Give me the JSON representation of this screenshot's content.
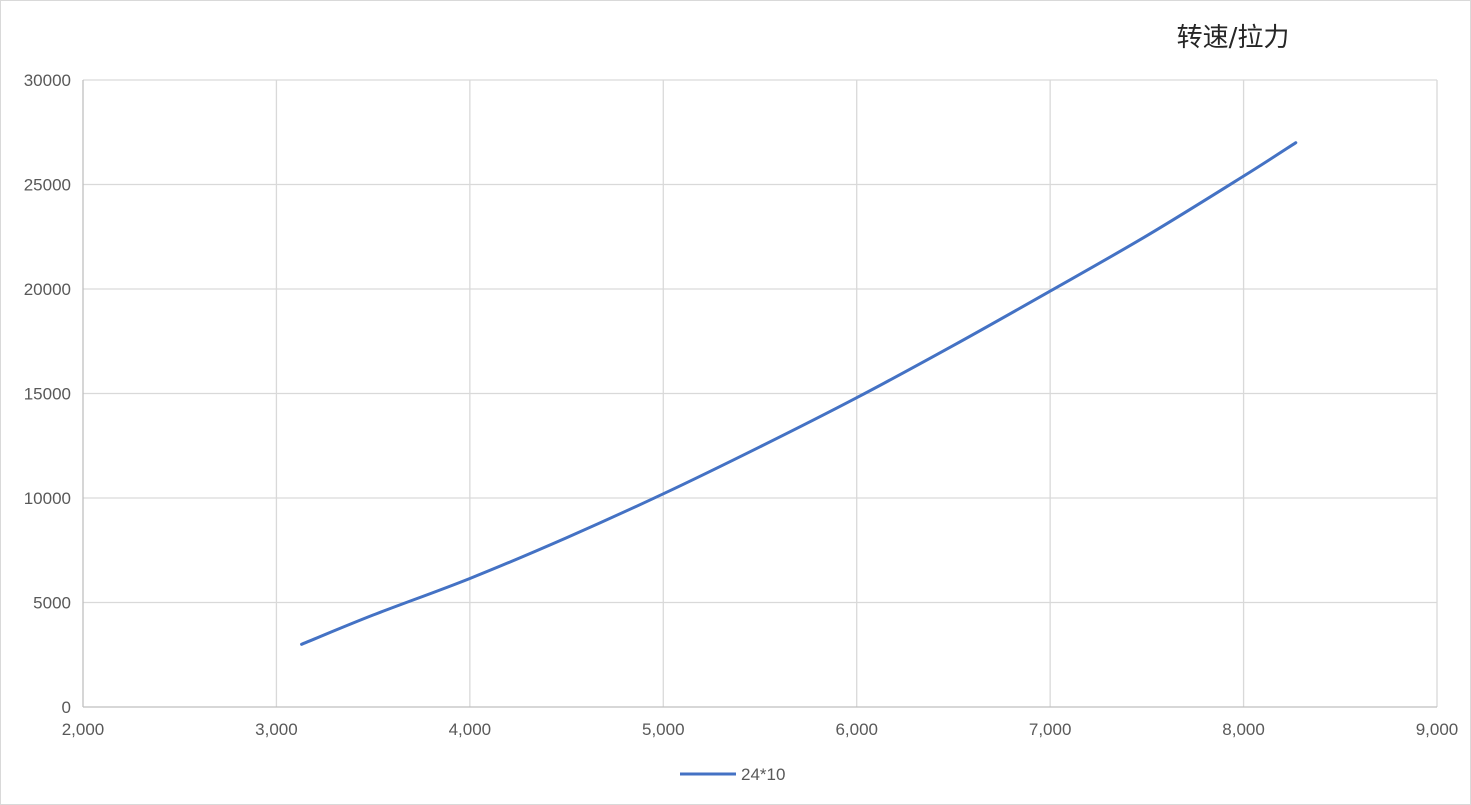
{
  "chart_data": {
    "type": "scatter",
    "title": "转速/拉力",
    "xlabel": "",
    "ylabel": "",
    "xlim": [
      2000,
      9000
    ],
    "ylim": [
      0,
      30000
    ],
    "x_ticks": [
      2000,
      3000,
      4000,
      5000,
      6000,
      7000,
      8000,
      9000
    ],
    "x_tick_labels": [
      "2,000",
      "3,000",
      "4,000",
      "5,000",
      "6,000",
      "7,000",
      "8,000",
      "9,000"
    ],
    "y_ticks": [
      0,
      5000,
      10000,
      15000,
      20000,
      25000,
      30000
    ],
    "y_tick_labels": [
      "0",
      "5000",
      "10000",
      "15000",
      "20000",
      "25000",
      "30000"
    ],
    "grid": true,
    "legend_position": "bottom",
    "series": [
      {
        "name": "24*10",
        "color": "#4472C4",
        "line": "smooth",
        "x": [
          3130,
          3500,
          4000,
          4500,
          5000,
          5500,
          6000,
          6500,
          7000,
          7500,
          8000,
          8270
        ],
        "y": [
          3000,
          4400,
          6150,
          8100,
          10200,
          12450,
          14800,
          17300,
          19900,
          22550,
          25400,
          27000
        ]
      }
    ]
  }
}
